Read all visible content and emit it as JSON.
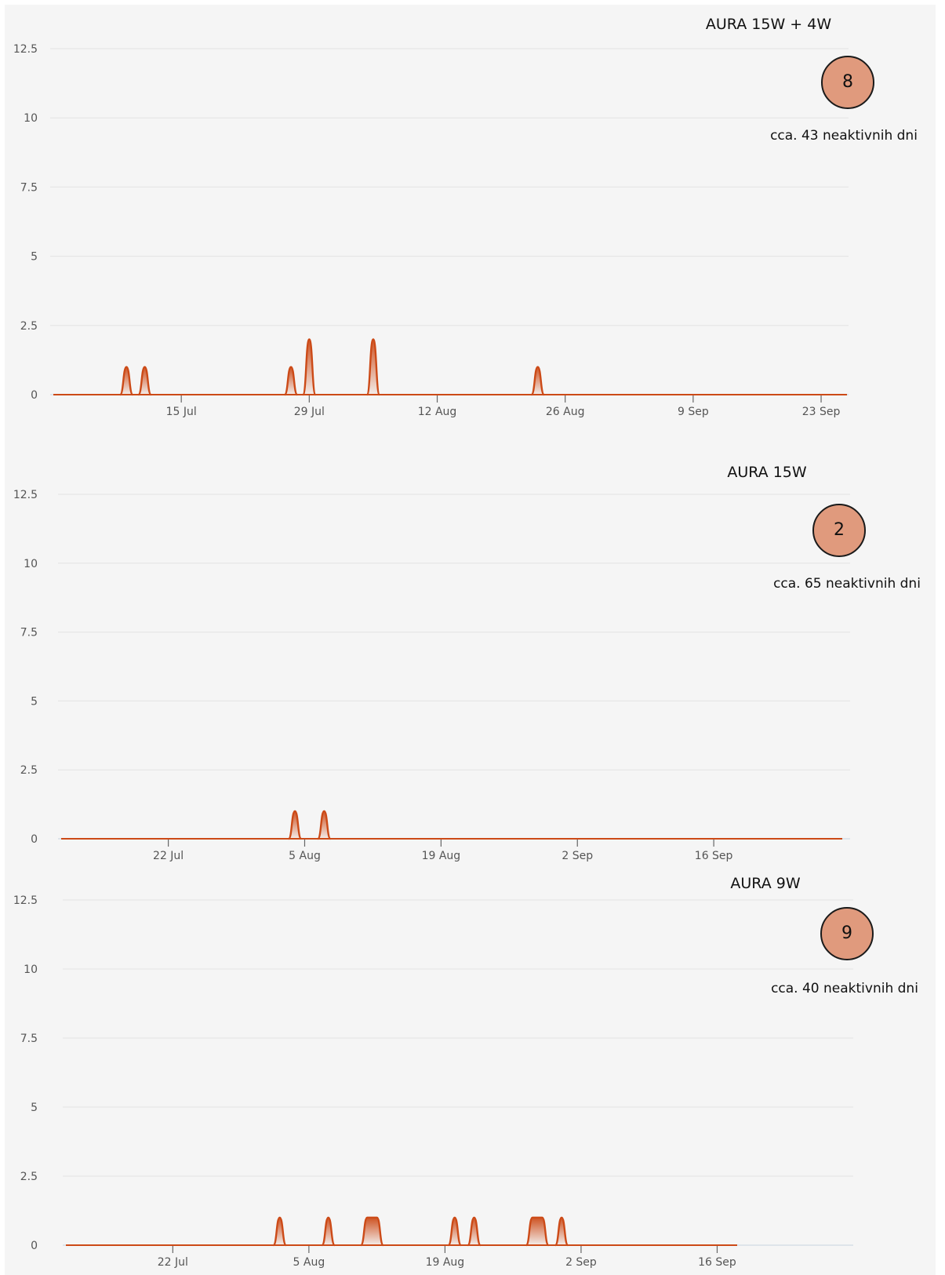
{
  "chart_data": [
    {
      "type": "area",
      "title": "AURA 15W + 4W",
      "badge": "8",
      "note": "cca. 43 neaktivnih dni",
      "yticks": [
        "0",
        "2.5",
        "5",
        "7.5",
        "10",
        "12.5"
      ],
      "ylim": [
        0,
        12.5
      ],
      "xlim": [
        "2024-07-01",
        "2024-09-26"
      ],
      "xticks": [
        {
          "date": "2024-07-15",
          "label": "15 Jul"
        },
        {
          "date": "2024-07-29",
          "label": "29 Jul"
        },
        {
          "date": "2024-08-12",
          "label": "12 Aug"
        },
        {
          "date": "2024-08-26",
          "label": "26 Aug"
        },
        {
          "date": "2024-09-09",
          "label": "9 Sep"
        },
        {
          "date": "2024-09-23",
          "label": "23 Sep"
        }
      ],
      "series": [
        {
          "color": "#cc4a17",
          "points": [
            {
              "date": "2024-07-09",
              "value": 1
            },
            {
              "date": "2024-07-11",
              "value": 1
            },
            {
              "date": "2024-07-27",
              "value": 1
            },
            {
              "date": "2024-07-29",
              "value": 2
            },
            {
              "date": "2024-08-05",
              "value": 2
            },
            {
              "date": "2024-08-23",
              "value": 1
            }
          ]
        }
      ]
    },
    {
      "type": "area",
      "title": "AURA 15W",
      "badge": "2",
      "note": "cca. 65 neaktivnih dni",
      "yticks": [
        "0",
        "2.5",
        "5",
        "7.5",
        "10",
        "12.5"
      ],
      "ylim": [
        0,
        12.5
      ],
      "xlim": [
        "2024-07-11",
        "2024-09-30"
      ],
      "xticks": [
        {
          "date": "2024-07-22",
          "label": "22 Jul"
        },
        {
          "date": "2024-08-05",
          "label": "5 Aug"
        },
        {
          "date": "2024-08-19",
          "label": "19 Aug"
        },
        {
          "date": "2024-09-02",
          "label": "2 Sep"
        },
        {
          "date": "2024-09-16",
          "label": "16 Sep"
        }
      ],
      "series": [
        {
          "color": "#cc4a17",
          "points": [
            {
              "date": "2024-08-04",
              "value": 1
            },
            {
              "date": "2024-08-07",
              "value": 1
            }
          ]
        }
      ]
    },
    {
      "type": "area",
      "title": "AURA 9W",
      "badge": "9",
      "note": "cca. 40 neaktivnih dni",
      "yticks": [
        "0",
        "2.5",
        "5",
        "7.5",
        "10",
        "12.5"
      ],
      "ylim": [
        0,
        12.5
      ],
      "xlim": [
        "2024-07-11",
        "2024-09-30"
      ],
      "xticks": [
        {
          "date": "2024-07-22",
          "label": "22 Jul"
        },
        {
          "date": "2024-08-05",
          "label": "5 Aug"
        },
        {
          "date": "2024-08-19",
          "label": "19 Aug"
        },
        {
          "date": "2024-09-02",
          "label": "2 Sep"
        },
        {
          "date": "2024-09-16",
          "label": "16 Sep"
        }
      ],
      "series": [
        {
          "color": "#cc4a17",
          "points": [
            {
              "date": "2024-08-02",
              "value": 1
            },
            {
              "date": "2024-08-07",
              "value": 1
            },
            {
              "date": "2024-08-11",
              "value": 1
            },
            {
              "date": "2024-08-12",
              "value": 1
            },
            {
              "date": "2024-08-20",
              "value": 1
            },
            {
              "date": "2024-08-22",
              "value": 1
            },
            {
              "date": "2024-08-28",
              "value": 1
            },
            {
              "date": "2024-08-29",
              "value": 1
            },
            {
              "date": "2024-08-31",
              "value": 1
            }
          ]
        }
      ]
    }
  ]
}
